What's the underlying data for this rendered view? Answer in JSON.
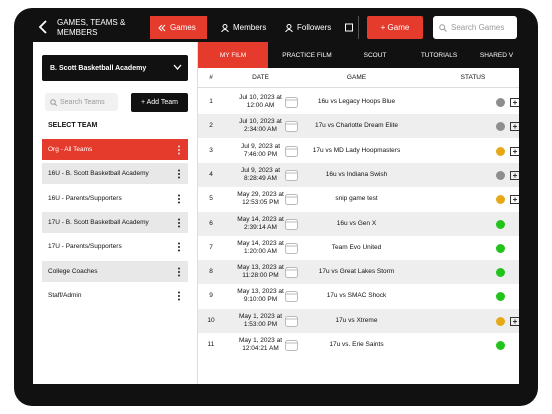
{
  "header": {
    "title": "GAMES, TEAMS &\nMEMBERS",
    "tabs": [
      "Games",
      "Members",
      "Followers"
    ],
    "add_button": "+ Game",
    "search_placeholder": "Search Games"
  },
  "sub_tabs": [
    "MY FILM",
    "PRACTICE FILM",
    "SCOUT",
    "TUTORIALS",
    "SHARED V"
  ],
  "sidebar": {
    "organization": "B. Scott Basketball Academy",
    "search_placeholder": "Search Teams",
    "add_button": "+ Add Team",
    "section_title": "SELECT TEAM",
    "teams": [
      "Org - All Teams",
      "16U - B. Scott Basketball Academy",
      "16U - Parents/Supporters",
      "17U - B. Scott Basketball Academy",
      "17U - Parents/Supporters",
      "College Coaches",
      "Staff/Admin"
    ]
  },
  "table": {
    "columns": [
      "#",
      "DATE",
      "GAME",
      "STATUS"
    ],
    "rows": [
      {
        "num": "1",
        "date": [
          "Jul 10, 2023 at",
          "12:00 AM"
        ],
        "game": "16u vs Legacy Hoops Blue",
        "status_color": "#8e8e8e",
        "film": true
      },
      {
        "num": "2",
        "date": [
          "Jul 10, 2023 at",
          "2:34:00 AM"
        ],
        "game": "17u vs Charlotte Dream Elite",
        "status_color": "#8e8e8e",
        "film": true
      },
      {
        "num": "3",
        "date": [
          "Jul 9, 2023 at",
          "7:46:00 PM"
        ],
        "game": "17u vs MD Lady Hoopmasters",
        "status_color": "#e6a817",
        "film": true
      },
      {
        "num": "4",
        "date": [
          "Jul 9, 2023 at",
          "8:28:49 AM"
        ],
        "game": "16u vs Indiana Swish",
        "status_color": "#8e8e8e",
        "film": true
      },
      {
        "num": "5",
        "date": [
          "May 29, 2023 at",
          "12:53:05 PM"
        ],
        "game": "snip game test",
        "status_color": "#e6a817",
        "film": true
      },
      {
        "num": "6",
        "date": [
          "May 14, 2023 at",
          "2:39:14 AM"
        ],
        "game": "16u vs Gen X",
        "status_color": "#22c41c",
        "film": false
      },
      {
        "num": "7",
        "date": [
          "May 14, 2023 at",
          "1:20:00 AM"
        ],
        "game": "Team Evo United",
        "status_color": "#22c41c",
        "film": false
      },
      {
        "num": "8",
        "date": [
          "May 13, 2023 at",
          "11:28:00 PM"
        ],
        "game": "17u vs Great Lakes Storm",
        "status_color": "#22c41c",
        "film": false
      },
      {
        "num": "9",
        "date": [
          "May 13, 2023 at",
          "9:10:00 PM"
        ],
        "game": "17u vs SMAC Shock",
        "status_color": "#22c41c",
        "film": false
      },
      {
        "num": "10",
        "date": [
          "May 1, 2023 at",
          "1:53:00 PM"
        ],
        "game": "17u vs Xtreme",
        "status_color": "#e6a817",
        "film": true
      },
      {
        "num": "11",
        "date": [
          "May 1, 2023 at",
          "12:04:21 AM"
        ],
        "game": "17u vs. Erie Saints",
        "status_color": "#22c41c",
        "film": false
      }
    ]
  }
}
